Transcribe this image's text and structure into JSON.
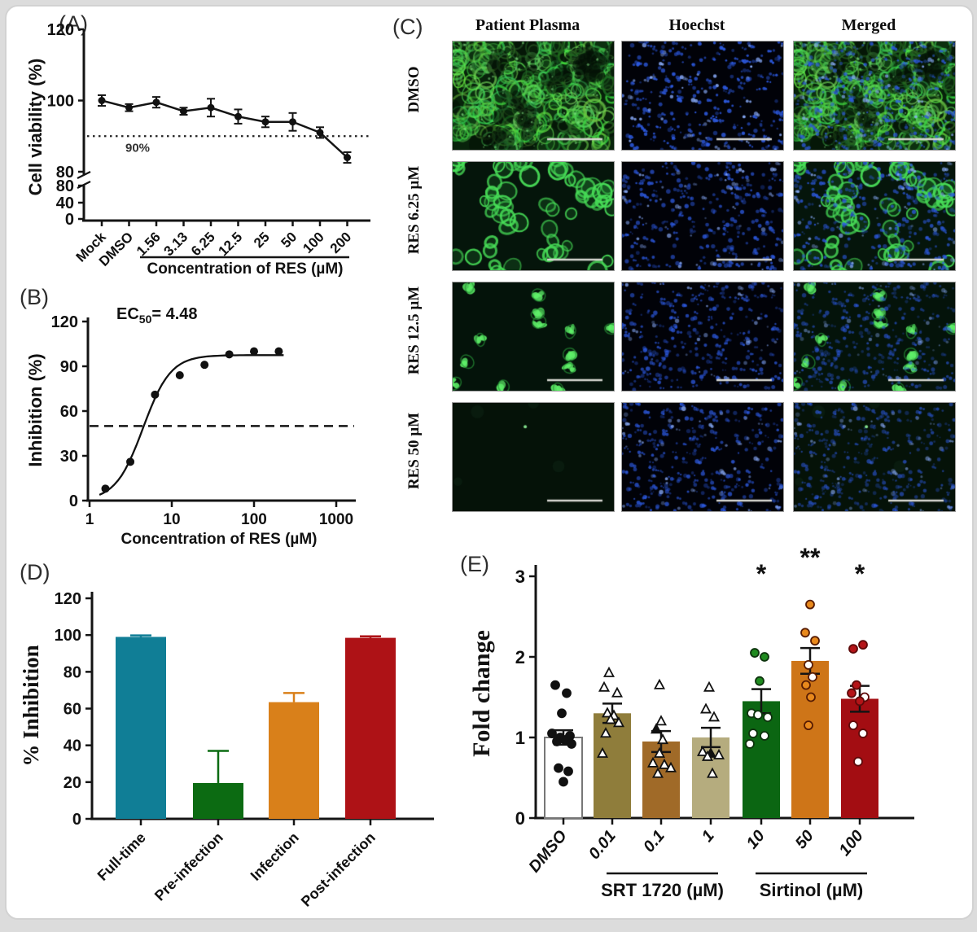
{
  "panels": {
    "A": {
      "label": "(A)"
    },
    "B": {
      "label": "(B)"
    },
    "C": {
      "label": "(C)",
      "columns": [
        "Patient Plasma",
        "Hoechst",
        "Merged"
      ],
      "rows": [
        {
          "label": "DMSO",
          "green_density": "dense"
        },
        {
          "label": "RES 6.25 µM",
          "green_density": "medium"
        },
        {
          "label": "RES 12.5 µM",
          "green_density": "sparse"
        },
        {
          "label": "RES 50 µM",
          "green_density": "none"
        }
      ],
      "channel_colors": {
        "green": "#3fcf4f",
        "blue": "#3b6ce0"
      },
      "scale_bar_color": "#d8d8d2"
    },
    "D": {
      "label": "(D)"
    },
    "E": {
      "label": "(E)"
    }
  },
  "chart_data": [
    {
      "id": "A",
      "type": "line",
      "ylabel": "Cell viability (%)",
      "xlabel": "Concentration of RES (µM)",
      "categories": [
        "Mock",
        "DMSO",
        "1.56",
        "3.13",
        "6.25",
        "12.5",
        "25",
        "50",
        "100",
        "200"
      ],
      "values": [
        100,
        98,
        99.5,
        97,
        98,
        95.5,
        94,
        94,
        91,
        84
      ],
      "errors": [
        1.5,
        1,
        1.5,
        1,
        2.5,
        2,
        1.5,
        2.5,
        1.5,
        1.5
      ],
      "ylim": [
        0,
        120
      ],
      "yticks_lower": [
        0,
        40,
        80
      ],
      "yticks_upper": [
        80,
        100,
        120
      ],
      "axis_break": true,
      "reference_line": {
        "value": 90,
        "style": "dotted",
        "label": "90%"
      },
      "xlabel_underline_categories": [
        "1.56",
        "200"
      ]
    },
    {
      "id": "B",
      "type": "scatter",
      "ylabel": "Inhibition (%)",
      "xlabel": "Concentration of RES (µM)",
      "x": [
        1.56,
        3.13,
        6.25,
        12.5,
        25,
        50,
        100,
        200
      ],
      "y": [
        8,
        26,
        71,
        84,
        91,
        98,
        100,
        100
      ],
      "xscale": "log",
      "xlim": [
        1,
        1000
      ],
      "xticks": [
        1,
        10,
        100,
        1000
      ],
      "ylim": [
        0,
        120
      ],
      "yticks": [
        0,
        30,
        60,
        90,
        120
      ],
      "annotation": {
        "pre": "EC",
        "sub": "50",
        "post": "= 4.48"
      },
      "curve": {
        "ec50": 4.48,
        "hill": 2.6,
        "top": 97.5
      },
      "reference_line": {
        "value": 50,
        "style": "dashed"
      }
    },
    {
      "id": "D",
      "type": "bar",
      "ylabel": "% Inhibition",
      "categories": [
        "Full-time",
        "Pre-infection",
        "Infection",
        "Post-infection"
      ],
      "values": [
        99,
        19.5,
        63.5,
        98.5
      ],
      "errors": [
        0.8,
        17.5,
        5,
        0.8
      ],
      "colors": [
        "#107E96",
        "#0C6B12",
        "#D9801A",
        "#AE1216"
      ],
      "ylim": [
        0,
        120
      ],
      "yticks": [
        0,
        20,
        40,
        60,
        80,
        100,
        120
      ]
    },
    {
      "id": "E",
      "type": "bar-scatter",
      "ylabel": "Fold change",
      "categories": [
        "DMSO",
        "0.01",
        "0.1",
        "1",
        "10",
        "50",
        "100"
      ],
      "values": [
        1.0,
        1.3,
        0.95,
        1.0,
        1.45,
        1.95,
        1.48
      ],
      "errors": [
        0.09,
        0.12,
        0.13,
        0.12,
        0.15,
        0.16,
        0.16
      ],
      "significance": [
        "",
        "",
        "",
        "",
        "*",
        "**",
        "*"
      ],
      "colors": [
        "#FFFFFF",
        "#8F7D3B",
        "#A06A28",
        "#B5AC7E",
        "#0B6612",
        "#CE7518",
        "#A30D12"
      ],
      "point_styles": [
        {
          "shape": "circle",
          "stroke": "#111111",
          "fill": "#111111"
        },
        {
          "shape": "triangle",
          "stroke": "#111111",
          "fill": "#111111"
        },
        {
          "shape": "triangle",
          "stroke": "#111111",
          "fill": "#111111"
        },
        {
          "shape": "triangle",
          "stroke": "#111111",
          "fill": "#111111"
        },
        {
          "shape": "circle",
          "stroke": "#0d330d",
          "fill": "#1f8b1f"
        },
        {
          "shape": "circle",
          "stroke": "#571c03",
          "fill": "#e8891c"
        },
        {
          "shape": "circle",
          "stroke": "#5e0909",
          "fill": "#b41418"
        }
      ],
      "points": [
        [
          [
            -10,
            1.65,
            1
          ],
          [
            4,
            1.55,
            1
          ],
          [
            -2,
            1.3,
            1
          ],
          [
            -14,
            1.05,
            1
          ],
          [
            8,
            1.02,
            1
          ],
          [
            -4,
            1.0,
            1
          ],
          [
            2,
            0.97,
            1
          ],
          [
            -8,
            0.95,
            1
          ],
          [
            10,
            0.92,
            1
          ],
          [
            -6,
            0.62,
            1
          ],
          [
            6,
            0.58,
            1
          ],
          [
            0,
            0.45,
            1
          ]
        ],
        [
          [
            -4,
            1.8,
            0
          ],
          [
            -10,
            1.62,
            0
          ],
          [
            6,
            1.55,
            0
          ],
          [
            -6,
            1.3,
            0
          ],
          [
            2,
            1.27,
            0
          ],
          [
            -2,
            1.22,
            0
          ],
          [
            8,
            1.18,
            0
          ],
          [
            -8,
            1.05,
            0
          ],
          [
            -12,
            0.8,
            0
          ]
        ],
        [
          [
            -2,
            1.65,
            0
          ],
          [
            0,
            1.2,
            0
          ],
          [
            -6,
            1.1,
            1
          ],
          [
            2,
            0.97,
            0
          ],
          [
            -2,
            0.8,
            0
          ],
          [
            -10,
            0.68,
            0
          ],
          [
            4,
            0.66,
            0
          ],
          [
            12,
            0.62,
            0
          ],
          [
            -4,
            0.55,
            0
          ]
        ],
        [
          [
            -2,
            1.62,
            0
          ],
          [
            -6,
            1.35,
            0
          ],
          [
            4,
            1.25,
            0
          ],
          [
            -10,
            0.82,
            0
          ],
          [
            0,
            0.8,
            1
          ],
          [
            10,
            0.78,
            0
          ],
          [
            -4,
            0.76,
            0
          ],
          [
            2,
            0.55,
            0
          ]
        ],
        [
          [
            -8,
            2.05,
            1
          ],
          [
            4,
            2.0,
            1
          ],
          [
            -2,
            1.7,
            1
          ],
          [
            -12,
            1.3,
            0
          ],
          [
            -4,
            1.28,
            0
          ],
          [
            8,
            1.25,
            0
          ],
          [
            -10,
            1.05,
            0
          ],
          [
            4,
            1.02,
            0
          ],
          [
            -14,
            0.92,
            0
          ]
        ],
        [
          [
            0,
            2.65,
            1
          ],
          [
            -6,
            2.3,
            1
          ],
          [
            6,
            2.2,
            1
          ],
          [
            -2,
            1.9,
            0
          ],
          [
            3,
            1.75,
            0
          ],
          [
            -5,
            1.65,
            1
          ],
          [
            1,
            1.5,
            1
          ],
          [
            -2,
            1.15,
            1
          ]
        ],
        [
          [
            4,
            2.15,
            1
          ],
          [
            -8,
            2.1,
            1
          ],
          [
            -4,
            1.65,
            1
          ],
          [
            -10,
            1.55,
            1
          ],
          [
            6,
            1.5,
            0
          ],
          [
            0,
            1.45,
            1
          ],
          [
            -8,
            1.15,
            0
          ],
          [
            4,
            1.05,
            0
          ],
          [
            -2,
            0.7,
            0
          ]
        ]
      ],
      "groups": [
        {
          "label": "SRT 1720 (µM)",
          "from": 1,
          "to": 3
        },
        {
          "label": "Sirtinol (µM)",
          "from": 4,
          "to": 6
        }
      ],
      "ylim": [
        0,
        3
      ],
      "yticks": [
        0,
        1,
        2,
        3
      ]
    }
  ]
}
